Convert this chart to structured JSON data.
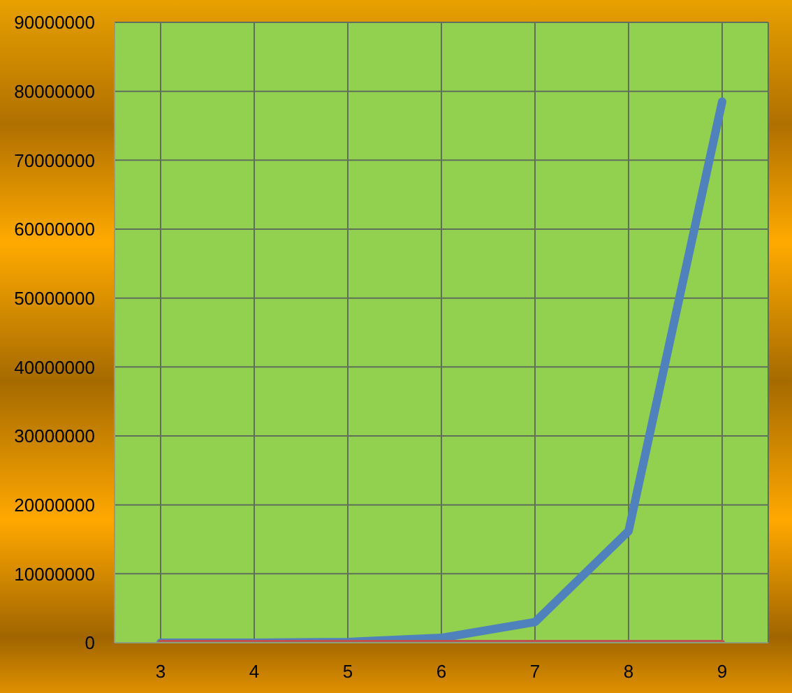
{
  "chart_data": {
    "type": "line",
    "categories": [
      "3",
      "4",
      "5",
      "6",
      "7",
      "8",
      "9"
    ],
    "series": [
      {
        "color": "#4f81bd",
        "values": [
          0,
          0,
          100000,
          700000,
          3000000,
          16200000,
          78500000
        ]
      },
      {
        "color": "#c0504d",
        "values": [
          0,
          0,
          0,
          0,
          0,
          0,
          0
        ]
      }
    ],
    "ylim": [
      0,
      90000000
    ],
    "yticks": [
      0,
      10000000,
      20000000,
      30000000,
      40000000,
      50000000,
      60000000,
      70000000,
      80000000,
      90000000
    ],
    "grid": true,
    "legend": false,
    "marker": "none",
    "line_style": "solid"
  }
}
